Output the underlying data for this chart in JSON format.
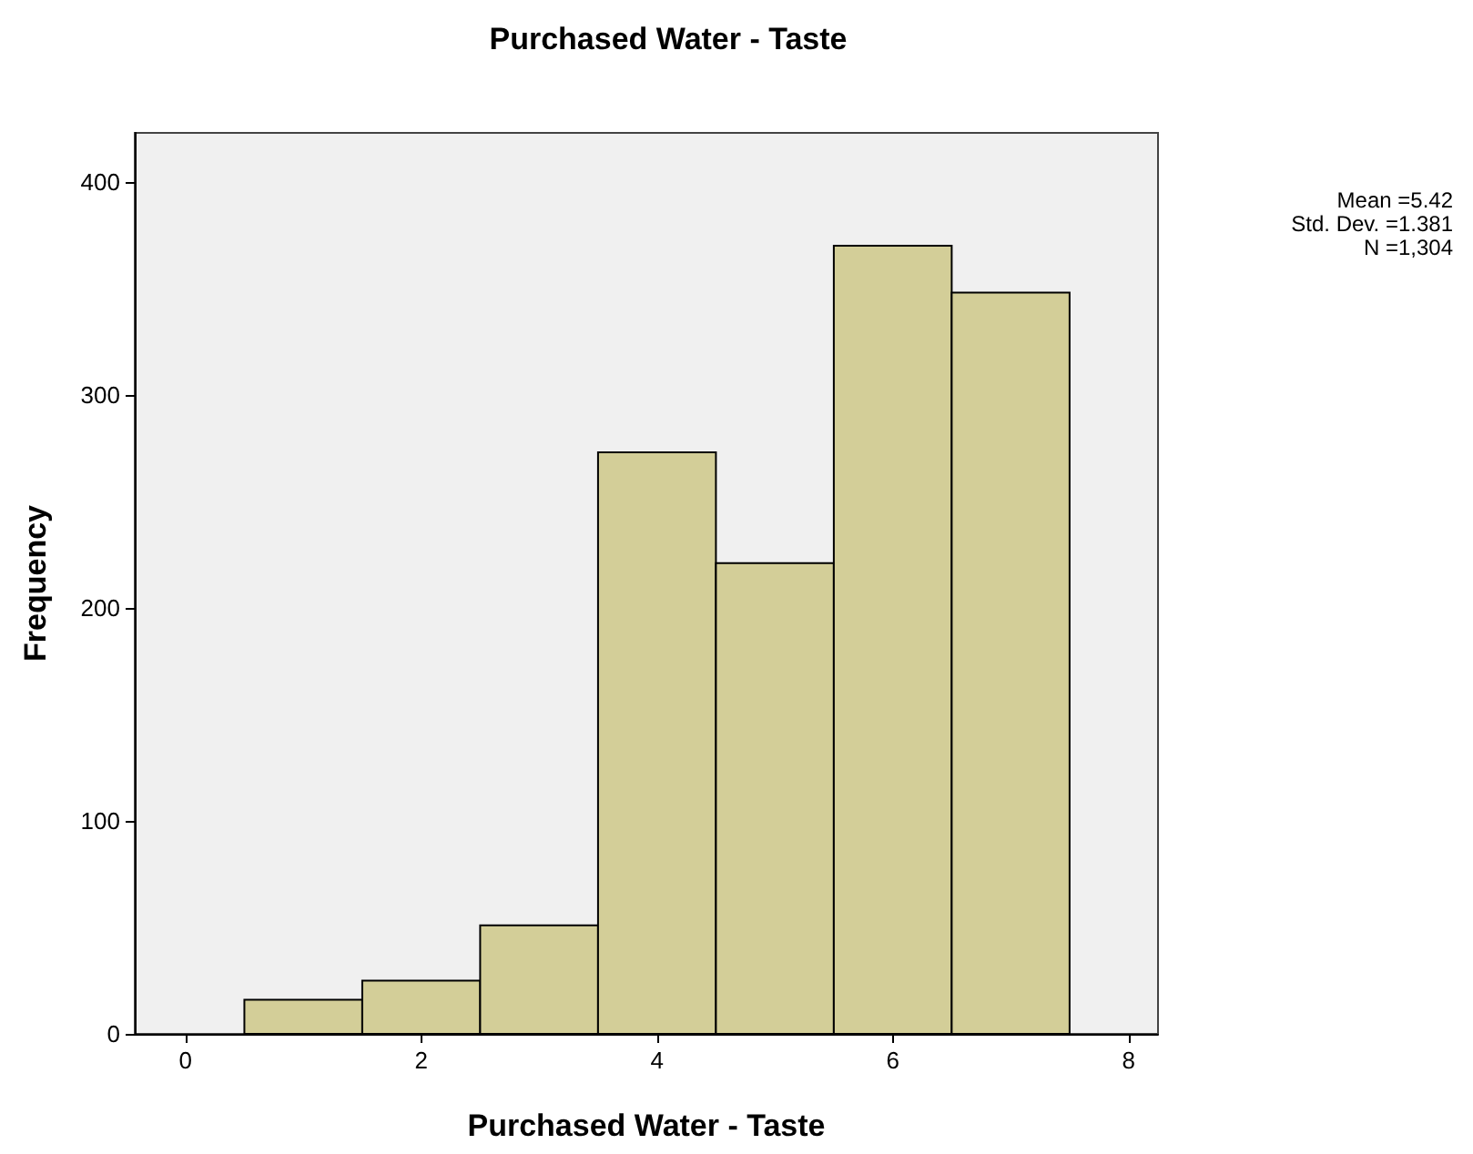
{
  "chart_data": {
    "type": "histogram",
    "title": "Purchased Water - Taste",
    "xlabel": "Purchased Water - Taste",
    "ylabel": "Frequency",
    "bins": [
      0.5,
      1.5,
      2.5,
      3.5,
      4.5,
      5.5,
      6.5,
      7.5
    ],
    "values": [
      16,
      25,
      51,
      273,
      221,
      370,
      348
    ],
    "color": "#d3ce98",
    "xlim": [
      -0.43,
      8.25
    ],
    "xticks": [
      0,
      2,
      4,
      6,
      8
    ],
    "ylim": [
      0,
      423
    ],
    "yticks": [
      0,
      100,
      200,
      300,
      400
    ],
    "annotations": [
      "Mean =5.42",
      "Std. Dev. =1.381",
      "N =1,304"
    ]
  }
}
